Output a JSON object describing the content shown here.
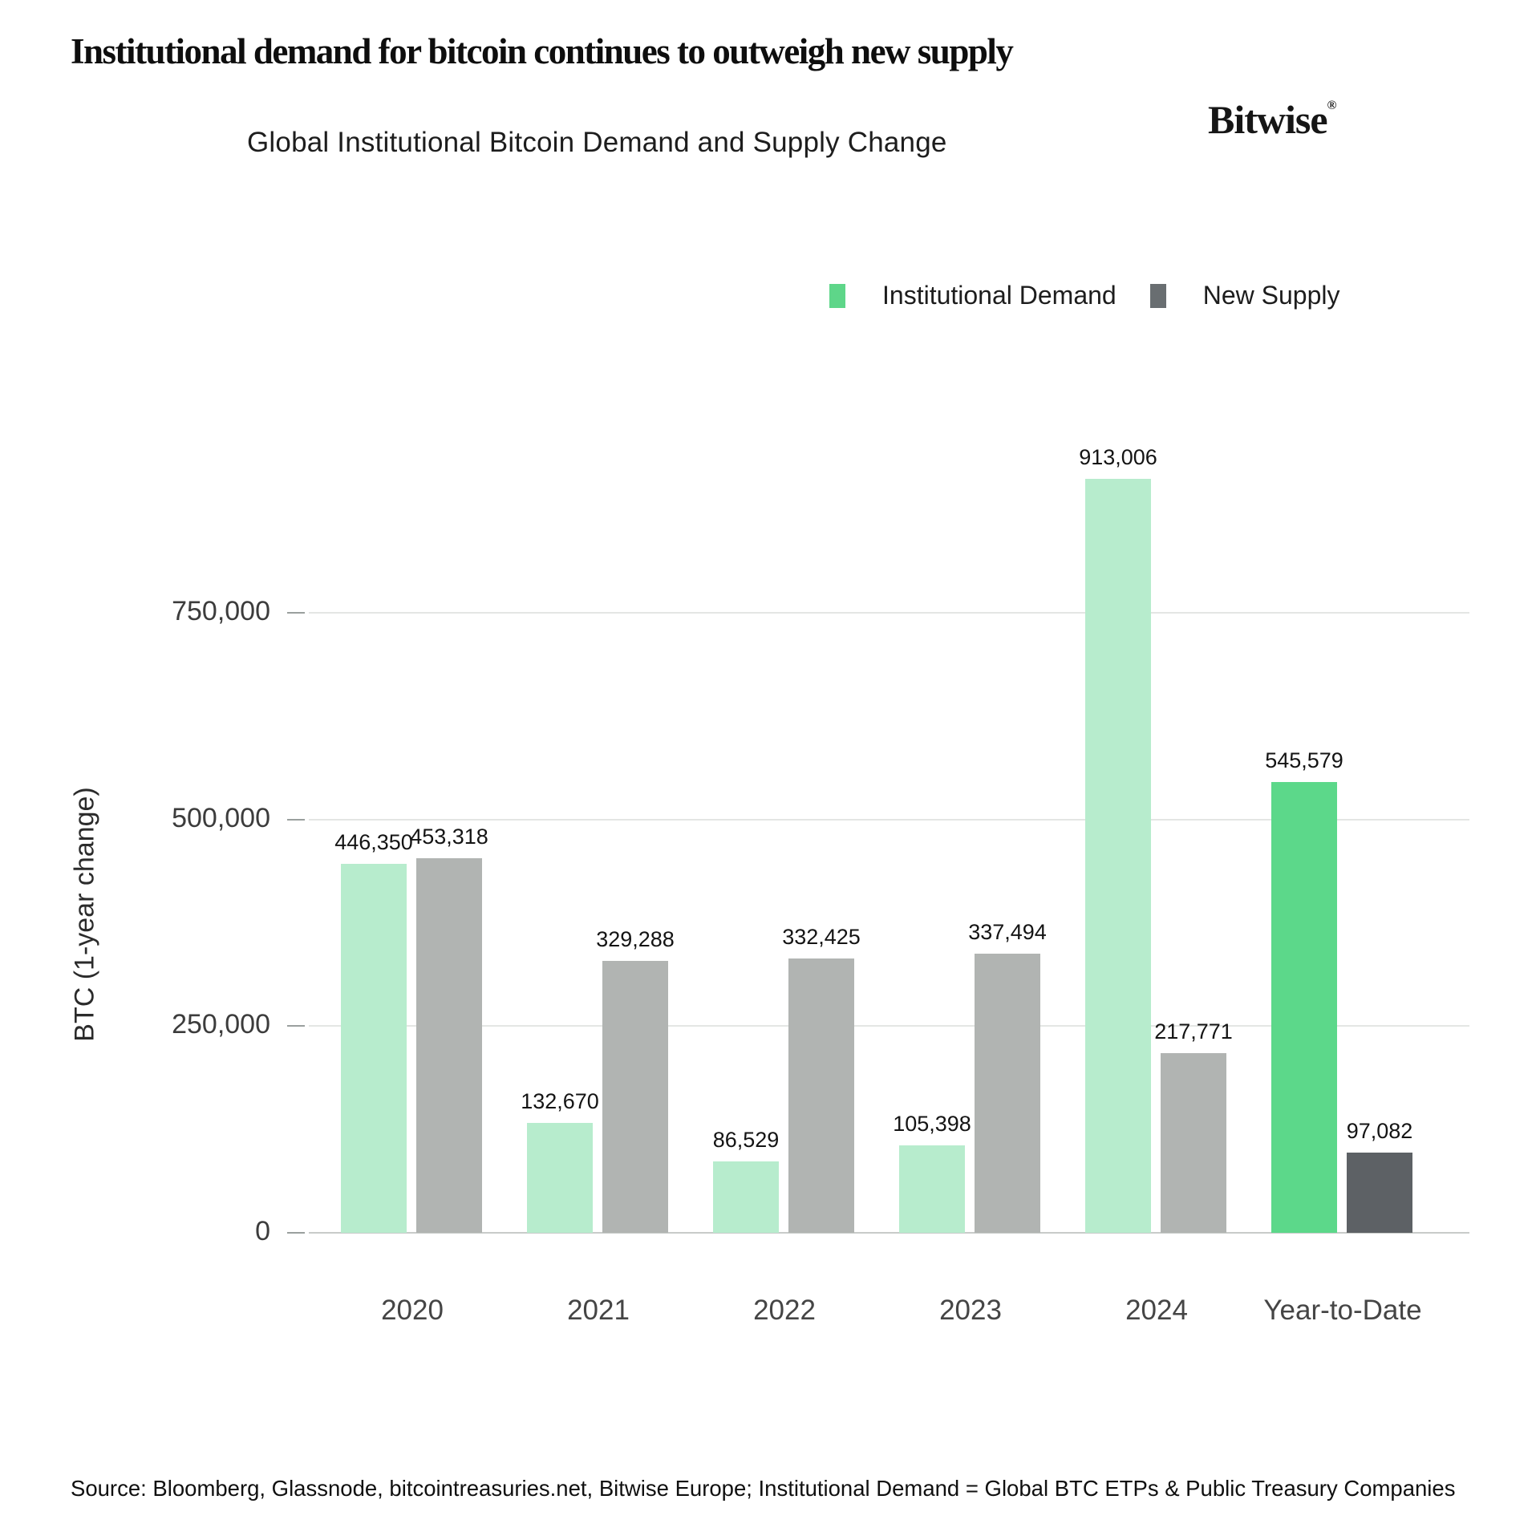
{
  "page": {
    "title": "Institutional demand for bitcoin continues to outweigh new supply",
    "source": "Source: Bloomberg, Glassnode, bitcointreasuries.net, Bitwise Europe; Institutional Demand = Global BTC ETPs & Public Treasury Companies"
  },
  "logo": {
    "text": "Bitwise",
    "registered_mark": "®"
  },
  "legend": [
    {
      "label": "Institutional Demand",
      "color": "#5ed689"
    },
    {
      "label": "New Supply",
      "color": "#696e71"
    }
  ],
  "chart_data": {
    "type": "bar",
    "title": "Global Institutional Bitcoin Demand and Supply Change",
    "categories": [
      "2020",
      "2021",
      "2022",
      "2023",
      "2024",
      "Year-to-Date"
    ],
    "series": [
      {
        "name": "Institutional Demand",
        "values": [
          446350,
          132670,
          86529,
          105398,
          913006,
          545579
        ],
        "labels": [
          "446,350",
          "132,670",
          "86,529",
          "105,398",
          "913,006",
          "545,579"
        ],
        "colors": [
          "#b7eccd",
          "#b7eccd",
          "#b7eccd",
          "#b7eccd",
          "#b7eccd",
          "#5cd88a"
        ]
      },
      {
        "name": "New Supply",
        "values": [
          453318,
          329288,
          332425,
          337494,
          217771,
          97082
        ],
        "labels": [
          "453,318",
          "329,288",
          "332,425",
          "337,494",
          "217,771",
          "97,082"
        ],
        "colors": [
          "#b1b4b2",
          "#b1b4b2",
          "#b1b4b2",
          "#b1b4b2",
          "#b1b4b2",
          "#5d6165"
        ]
      }
    ],
    "xlabel": "",
    "ylabel": "BTC (1-year change)",
    "ylim": [
      0,
      950000
    ],
    "yticks": [
      0,
      250000,
      500000,
      750000
    ],
    "ytick_labels": [
      "0",
      "250,000",
      "500,000",
      "750,000"
    ],
    "grid": true,
    "legend_position": "top-right"
  }
}
